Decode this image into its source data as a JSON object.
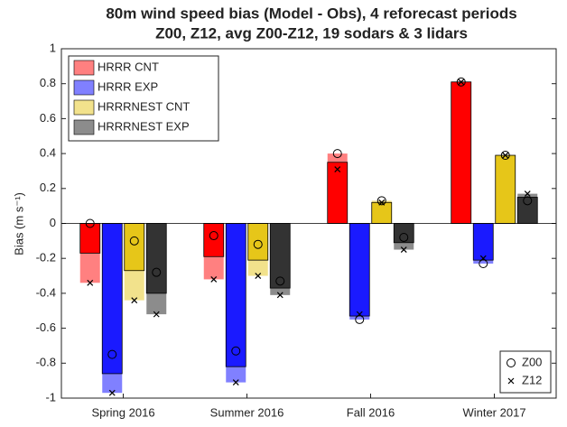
{
  "chart_data": {
    "type": "bar",
    "title": [
      "80m wind speed bias (Model - Obs), 4 reforecast periods",
      "Z00, Z12, avg Z00-Z12, 19 sodars & 3 lidars"
    ],
    "y_label": "Bias (m s⁻¹)",
    "categories": [
      "Spring 2016",
      "Summer 2016",
      "Fall 2016",
      "Winter 2017"
    ],
    "ylim": [
      -1,
      1
    ],
    "yticks": [
      -1,
      -0.8,
      -0.6,
      -0.4,
      -0.2,
      0,
      0.2,
      0.4,
      0.6,
      0.8,
      1
    ],
    "legend": "upper left",
    "marker_legend": [
      "Z00",
      "Z12"
    ],
    "series": [
      {
        "name": "HRRR CNT",
        "color": "#ff0000",
        "light_color": "#ff8080",
        "values": [
          -0.17,
          -0.19,
          0.35,
          0.81
        ],
        "z00": [
          0.0,
          -0.07,
          0.4,
          0.81
        ],
        "z12": [
          -0.34,
          -0.32,
          0.31,
          0.81
        ]
      },
      {
        "name": "HRRR EXP",
        "color": "#1a1aff",
        "light_color": "#8080ff",
        "values": [
          -0.86,
          -0.82,
          -0.53,
          -0.21
        ],
        "z00": [
          -0.75,
          -0.73,
          -0.55,
          -0.23
        ],
        "z12": [
          -0.97,
          -0.91,
          -0.52,
          -0.2
        ]
      },
      {
        "name": "HRRRNEST CNT",
        "color": "#e6c619",
        "light_color": "#f2e28c",
        "values": [
          -0.27,
          -0.21,
          0.12,
          0.39
        ],
        "z00": [
          -0.1,
          -0.12,
          0.13,
          0.39
        ],
        "z12": [
          -0.44,
          -0.3,
          0.12,
          0.39
        ]
      },
      {
        "name": "HRRRNEST EXP",
        "color": "#333333",
        "light_color": "#8c8c8c",
        "values": [
          -0.4,
          -0.37,
          -0.11,
          0.15
        ],
        "z00": [
          -0.28,
          -0.33,
          -0.08,
          0.13
        ],
        "z12": [
          -0.52,
          -0.41,
          -0.15,
          0.17
        ]
      }
    ]
  }
}
